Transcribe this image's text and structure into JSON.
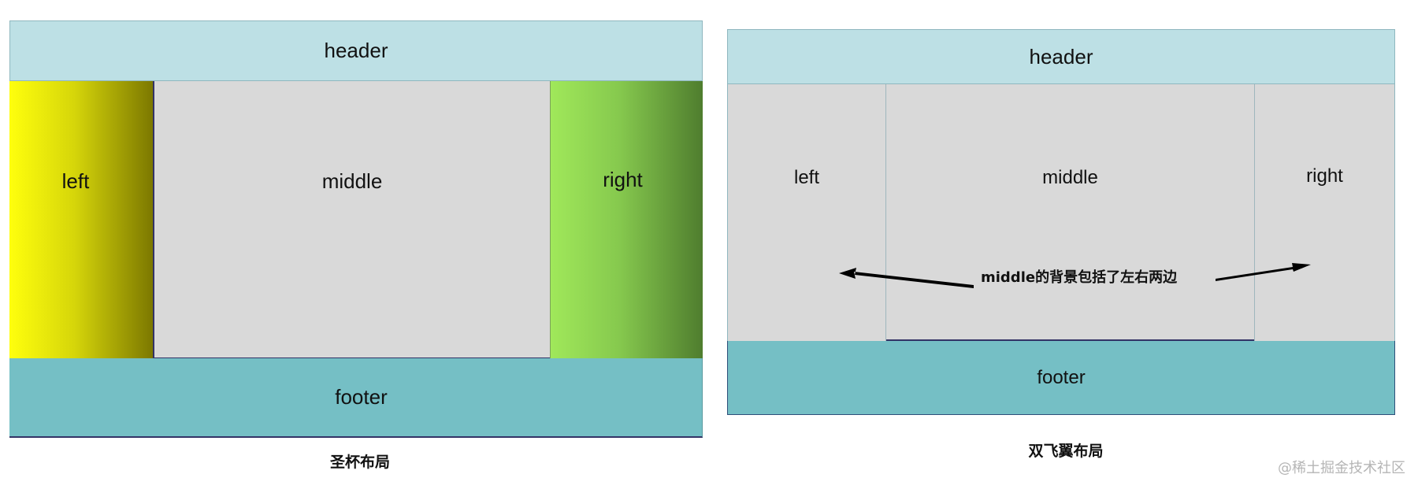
{
  "holy_grail": {
    "header": "header",
    "left": "left",
    "middle": "middle",
    "right": "right",
    "footer": "footer",
    "caption": "圣杯布局"
  },
  "double_wing": {
    "header": "header",
    "left": "left",
    "middle": "middle",
    "right": "right",
    "footer": "footer",
    "note": "middle的背景包括了左右两边",
    "caption": "双飞翼布局"
  },
  "watermark": "@稀土掘金技术社区",
  "colors": {
    "header": "#bde0e5",
    "footer": "#75bfc5",
    "middle": "#d9d9d9",
    "left_gradient": [
      "#ffff0d",
      "#7c7800"
    ],
    "right_gradient": [
      "#a0e85a",
      "#4f7d2e"
    ]
  }
}
